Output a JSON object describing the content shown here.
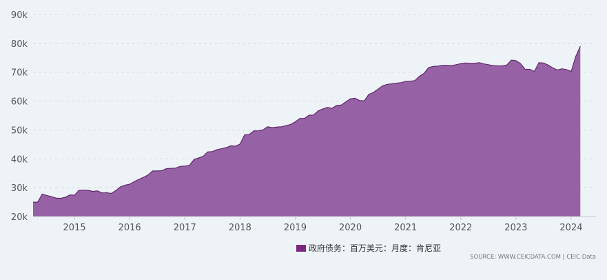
{
  "chart_data": {
    "type": "area",
    "title": "",
    "xlabel": "",
    "ylabel": "",
    "ylim": [
      20000,
      90000
    ],
    "y_ticks": [
      20000,
      30000,
      40000,
      50000,
      60000,
      70000,
      80000,
      90000
    ],
    "y_tick_labels": [
      "20k",
      "30k",
      "40k",
      "50k",
      "60k",
      "70k",
      "80k",
      "90k"
    ],
    "x_ticks": [
      "2015",
      "2016",
      "2017",
      "2018",
      "2019",
      "2020",
      "2021",
      "2022",
      "2023",
      "2024"
    ],
    "grid": true,
    "legend_position": "bottom",
    "series": [
      {
        "name": "政府债务：百万美元：月度：肯尼亚",
        "color": "#8b4c9a",
        "x": [
          "2014-04",
          "2014-05",
          "2014-06",
          "2014-07",
          "2014-08",
          "2014-09",
          "2014-10",
          "2014-11",
          "2014-12",
          "2015-01",
          "2015-02",
          "2015-03",
          "2015-04",
          "2015-05",
          "2015-06",
          "2015-07",
          "2015-08",
          "2015-09",
          "2015-10",
          "2015-11",
          "2015-12",
          "2016-01",
          "2016-02",
          "2016-03",
          "2016-04",
          "2016-05",
          "2016-06",
          "2016-07",
          "2016-08",
          "2016-09",
          "2016-10",
          "2016-11",
          "2016-12",
          "2017-01",
          "2017-02",
          "2017-03",
          "2017-04",
          "2017-05",
          "2017-06",
          "2017-07",
          "2017-08",
          "2017-09",
          "2017-10",
          "2017-11",
          "2017-12",
          "2018-01",
          "2018-02",
          "2018-03",
          "2018-04",
          "2018-05",
          "2018-06",
          "2018-07",
          "2018-08",
          "2018-09",
          "2018-10",
          "2018-11",
          "2018-12",
          "2019-01",
          "2019-02",
          "2019-03",
          "2019-04",
          "2019-05",
          "2019-06",
          "2019-07",
          "2019-08",
          "2019-09",
          "2019-10",
          "2019-11",
          "2019-12",
          "2020-01",
          "2020-02",
          "2020-03",
          "2020-04",
          "2020-05",
          "2020-06",
          "2020-07",
          "2020-08",
          "2020-09",
          "2020-10",
          "2020-11",
          "2020-12",
          "2021-01",
          "2021-02",
          "2021-03",
          "2021-04",
          "2021-05",
          "2021-06",
          "2021-07",
          "2021-08",
          "2021-09",
          "2021-10",
          "2021-11",
          "2021-12",
          "2022-01",
          "2022-02",
          "2022-03",
          "2022-04",
          "2022-05",
          "2022-06",
          "2022-07",
          "2022-08",
          "2022-09",
          "2022-10",
          "2022-11",
          "2022-12",
          "2023-01",
          "2023-02",
          "2023-03",
          "2023-04",
          "2023-05",
          "2023-06",
          "2023-07",
          "2023-08",
          "2023-09",
          "2023-10",
          "2023-11",
          "2023-12",
          "2024-01",
          "2024-02",
          "2024-03"
        ],
        "values": [
          25000,
          25000,
          27800,
          27300,
          26900,
          26400,
          26300,
          26700,
          27500,
          27400,
          29100,
          29100,
          29100,
          28700,
          28900,
          28200,
          28300,
          28000,
          29000,
          30300,
          30900,
          31200,
          32100,
          32900,
          33600,
          34400,
          35800,
          35800,
          35900,
          36600,
          36700,
          36800,
          37400,
          37500,
          37700,
          39800,
          40300,
          40900,
          42400,
          42500,
          43200,
          43500,
          43900,
          44500,
          44400,
          45100,
          48300,
          48400,
          49700,
          49700,
          50000,
          51100,
          50800,
          51000,
          51100,
          51500,
          51900,
          52800,
          54000,
          54000,
          55100,
          55200,
          56600,
          57300,
          57800,
          57500,
          58500,
          58600,
          59700,
          60800,
          61000,
          60200,
          60100,
          62300,
          63000,
          64100,
          65300,
          65800,
          66000,
          66200,
          66400,
          66800,
          66900,
          67100,
          68600,
          69600,
          71600,
          72000,
          72100,
          72400,
          72400,
          72300,
          72600,
          73000,
          73200,
          73100,
          73100,
          73300,
          72900,
          72600,
          72300,
          72200,
          72200,
          72500,
          74200,
          74000,
          73000,
          71000,
          71000,
          70300,
          73300,
          73200,
          72500,
          71500,
          70800,
          71200,
          70900,
          70300,
          75400,
          79000
        ]
      }
    ]
  },
  "source_text": "SOURCE: WWW.CEICDATA.COM | CEIC Data"
}
